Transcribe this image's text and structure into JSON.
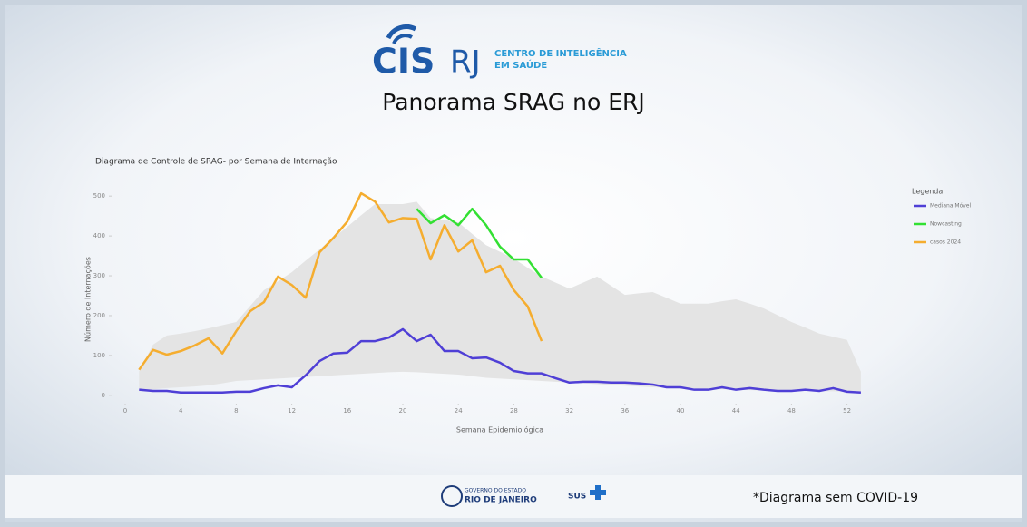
{
  "header": {
    "logo": "CIS",
    "logo_suffix": "RJ",
    "org_line1": "CENTRO DE INTELIGÊNCIA",
    "org_line2": "EM SAÚDE",
    "title": "Panorama SRAG no ERJ"
  },
  "footer": {
    "gov_line1": "GOVERNO DO ESTADO",
    "gov_line2": "RIO DE JANEIRO",
    "sus": "SUS",
    "note": "*Diagrama sem COVID-19"
  },
  "chart_data": {
    "type": "line",
    "title": "Diagrama de Controle de SRAG- por Semana de Internação",
    "x_label": "Semana Epidemiológica",
    "y_label": "Número de Internações",
    "legend_title": "Legenda",
    "legend": "top-right",
    "x": [
      1,
      2,
      3,
      4,
      5,
      6,
      7,
      8,
      9,
      10,
      11,
      12,
      13,
      14,
      15,
      16,
      17,
      18,
      19,
      20,
      21,
      22,
      23,
      24,
      25,
      26,
      27,
      28,
      29,
      30,
      31,
      32,
      33,
      34,
      35,
      36,
      37,
      38,
      39,
      40,
      41,
      42,
      43,
      44,
      45,
      46,
      47,
      48,
      49,
      50,
      51,
      52,
      53
    ],
    "xlim": [
      0,
      54
    ],
    "xticks": [
      0,
      4,
      8,
      12,
      16,
      20,
      24,
      28,
      32,
      36,
      40,
      44,
      48,
      52
    ],
    "ylim": [
      -30,
      530
    ],
    "yticks": [
      0,
      100,
      200,
      300,
      400,
      500
    ],
    "band": {
      "color": "#e4e4e4",
      "upper": [
        60,
        127,
        150,
        155,
        161,
        168,
        176,
        184,
        224,
        264,
        286,
        309,
        338,
        366,
        395,
        423,
        452,
        480,
        480,
        480,
        486,
        445,
        440,
        434,
        405,
        377,
        360,
        343,
        320,
        298,
        283,
        268,
        283,
        298,
        275,
        252,
        256,
        259,
        245,
        230,
        230,
        230,
        236,
        241,
        230,
        218,
        201,
        184,
        170,
        155,
        147,
        139,
        59
      ],
      "lower": [
        10,
        15,
        18,
        20,
        22,
        25,
        30,
        36,
        38,
        40,
        42,
        44,
        46,
        48,
        50,
        52,
        54,
        56,
        58,
        59,
        58,
        56,
        54,
        52,
        48,
        44,
        42,
        40,
        38,
        36,
        34,
        32,
        30,
        28,
        26,
        24,
        22,
        20,
        19,
        18,
        17,
        16,
        15,
        14,
        13,
        12,
        12,
        11,
        11,
        10,
        10,
        9,
        9
      ]
    },
    "series": [
      {
        "name": "Mediana Móvel",
        "color": "#4f3fd6",
        "values": [
          14,
          11,
          11,
          7,
          7,
          7,
          7,
          9,
          9,
          18,
          25,
          20,
          50,
          86,
          105,
          107,
          136,
          136,
          145,
          166,
          136,
          152,
          111,
          111,
          93,
          95,
          82,
          61,
          55,
          55,
          43,
          32,
          34,
          34,
          32,
          32,
          30,
          27,
          20,
          20,
          14,
          14,
          20,
          14,
          18,
          14,
          11,
          11,
          14,
          11,
          18,
          9,
          7
        ]
      },
      {
        "name": "Nowcasting",
        "color": "#33e033",
        "values": [
          null,
          null,
          null,
          null,
          null,
          null,
          null,
          null,
          null,
          null,
          null,
          null,
          null,
          null,
          null,
          null,
          null,
          null,
          null,
          null,
          468,
          432,
          452,
          427,
          468,
          427,
          373,
          341,
          341,
          295,
          null,
          null,
          null,
          null,
          null,
          null,
          null,
          null,
          null,
          null,
          null,
          null,
          null,
          null,
          null,
          null,
          null,
          null,
          null,
          null,
          null,
          null,
          null
        ]
      },
      {
        "name": "casos 2024",
        "color": "#f5ad2f",
        "values": [
          64,
          114,
          102,
          111,
          125,
          143,
          105,
          161,
          211,
          234,
          298,
          277,
          245,
          359,
          395,
          436,
          507,
          486,
          434,
          445,
          443,
          341,
          427,
          361,
          389,
          309,
          325,
          264,
          223,
          136,
          null,
          null,
          null,
          null,
          null,
          null,
          null,
          null,
          null,
          null,
          null,
          null,
          null,
          null,
          null,
          null,
          null,
          null,
          null,
          null,
          null,
          null,
          null
        ]
      }
    ]
  }
}
